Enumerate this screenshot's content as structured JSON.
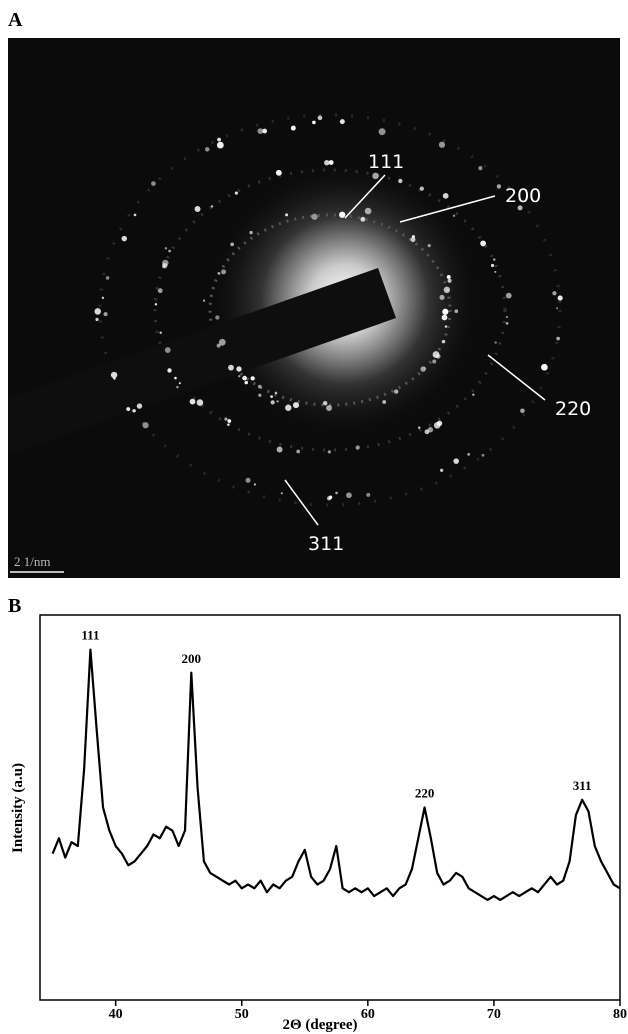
{
  "panel_a": {
    "label": "A",
    "annotations": [
      "111",
      "200",
      "220",
      "311"
    ],
    "scale_bar": "2 1/nm"
  },
  "panel_b": {
    "label": "B"
  },
  "chart_data": {
    "type": "line",
    "xlabel": "2Θ (degree)",
    "ylabel": "Intensity (a.u)",
    "color": "#000000",
    "xlim": [
      34,
      80
    ],
    "xticks": [
      40,
      50,
      60,
      70,
      80
    ],
    "ylim": [
      0,
      100
    ],
    "x": [
      35,
      35.5,
      36,
      36.5,
      37,
      37.5,
      38,
      38.5,
      39,
      39.5,
      40,
      40.5,
      41,
      41.5,
      42,
      42.5,
      43,
      43.5,
      44,
      44.5,
      45,
      45.5,
      46,
      46.5,
      47,
      47.5,
      48,
      48.5,
      49,
      49.5,
      50,
      50.5,
      51,
      51.5,
      52,
      52.5,
      53,
      53.5,
      54,
      54.5,
      55,
      55.5,
      56,
      56.5,
      57,
      57.5,
      58,
      58.5,
      59,
      59.5,
      60,
      60.5,
      61,
      61.5,
      62,
      62.5,
      63,
      63.5,
      64,
      64.5,
      65,
      65.5,
      66,
      66.5,
      67,
      67.5,
      68,
      68.5,
      69,
      69.5,
      70,
      70.5,
      71,
      71.5,
      72,
      72.5,
      73,
      73.5,
      74,
      74.5,
      75,
      75.5,
      76,
      76.5,
      77,
      77.5,
      78,
      78.5,
      79,
      79.5,
      80
    ],
    "values": [
      38,
      42,
      37,
      41,
      40,
      60,
      91,
      70,
      50,
      44,
      40,
      38,
      35,
      36,
      38,
      40,
      43,
      42,
      45,
      44,
      40,
      44,
      85,
      55,
      36,
      33,
      32,
      31,
      30,
      31,
      29,
      30,
      29,
      31,
      28,
      30,
      29,
      31,
      32,
      36,
      39,
      32,
      30,
      31,
      34,
      40,
      29,
      28,
      29,
      28,
      29,
      27,
      28,
      29,
      27,
      29,
      30,
      34,
      42,
      50,
      42,
      33,
      30,
      31,
      33,
      32,
      29,
      28,
      27,
      26,
      27,
      26,
      27,
      28,
      27,
      28,
      29,
      28,
      30,
      32,
      30,
      31,
      36,
      48,
      52,
      49,
      40,
      36,
      33,
      30,
      29
    ],
    "annotations": [
      {
        "text": "111",
        "x": 38
      },
      {
        "text": "200",
        "x": 46
      },
      {
        "text": "220",
        "x": 64.5
      },
      {
        "text": "311",
        "x": 77
      }
    ]
  }
}
